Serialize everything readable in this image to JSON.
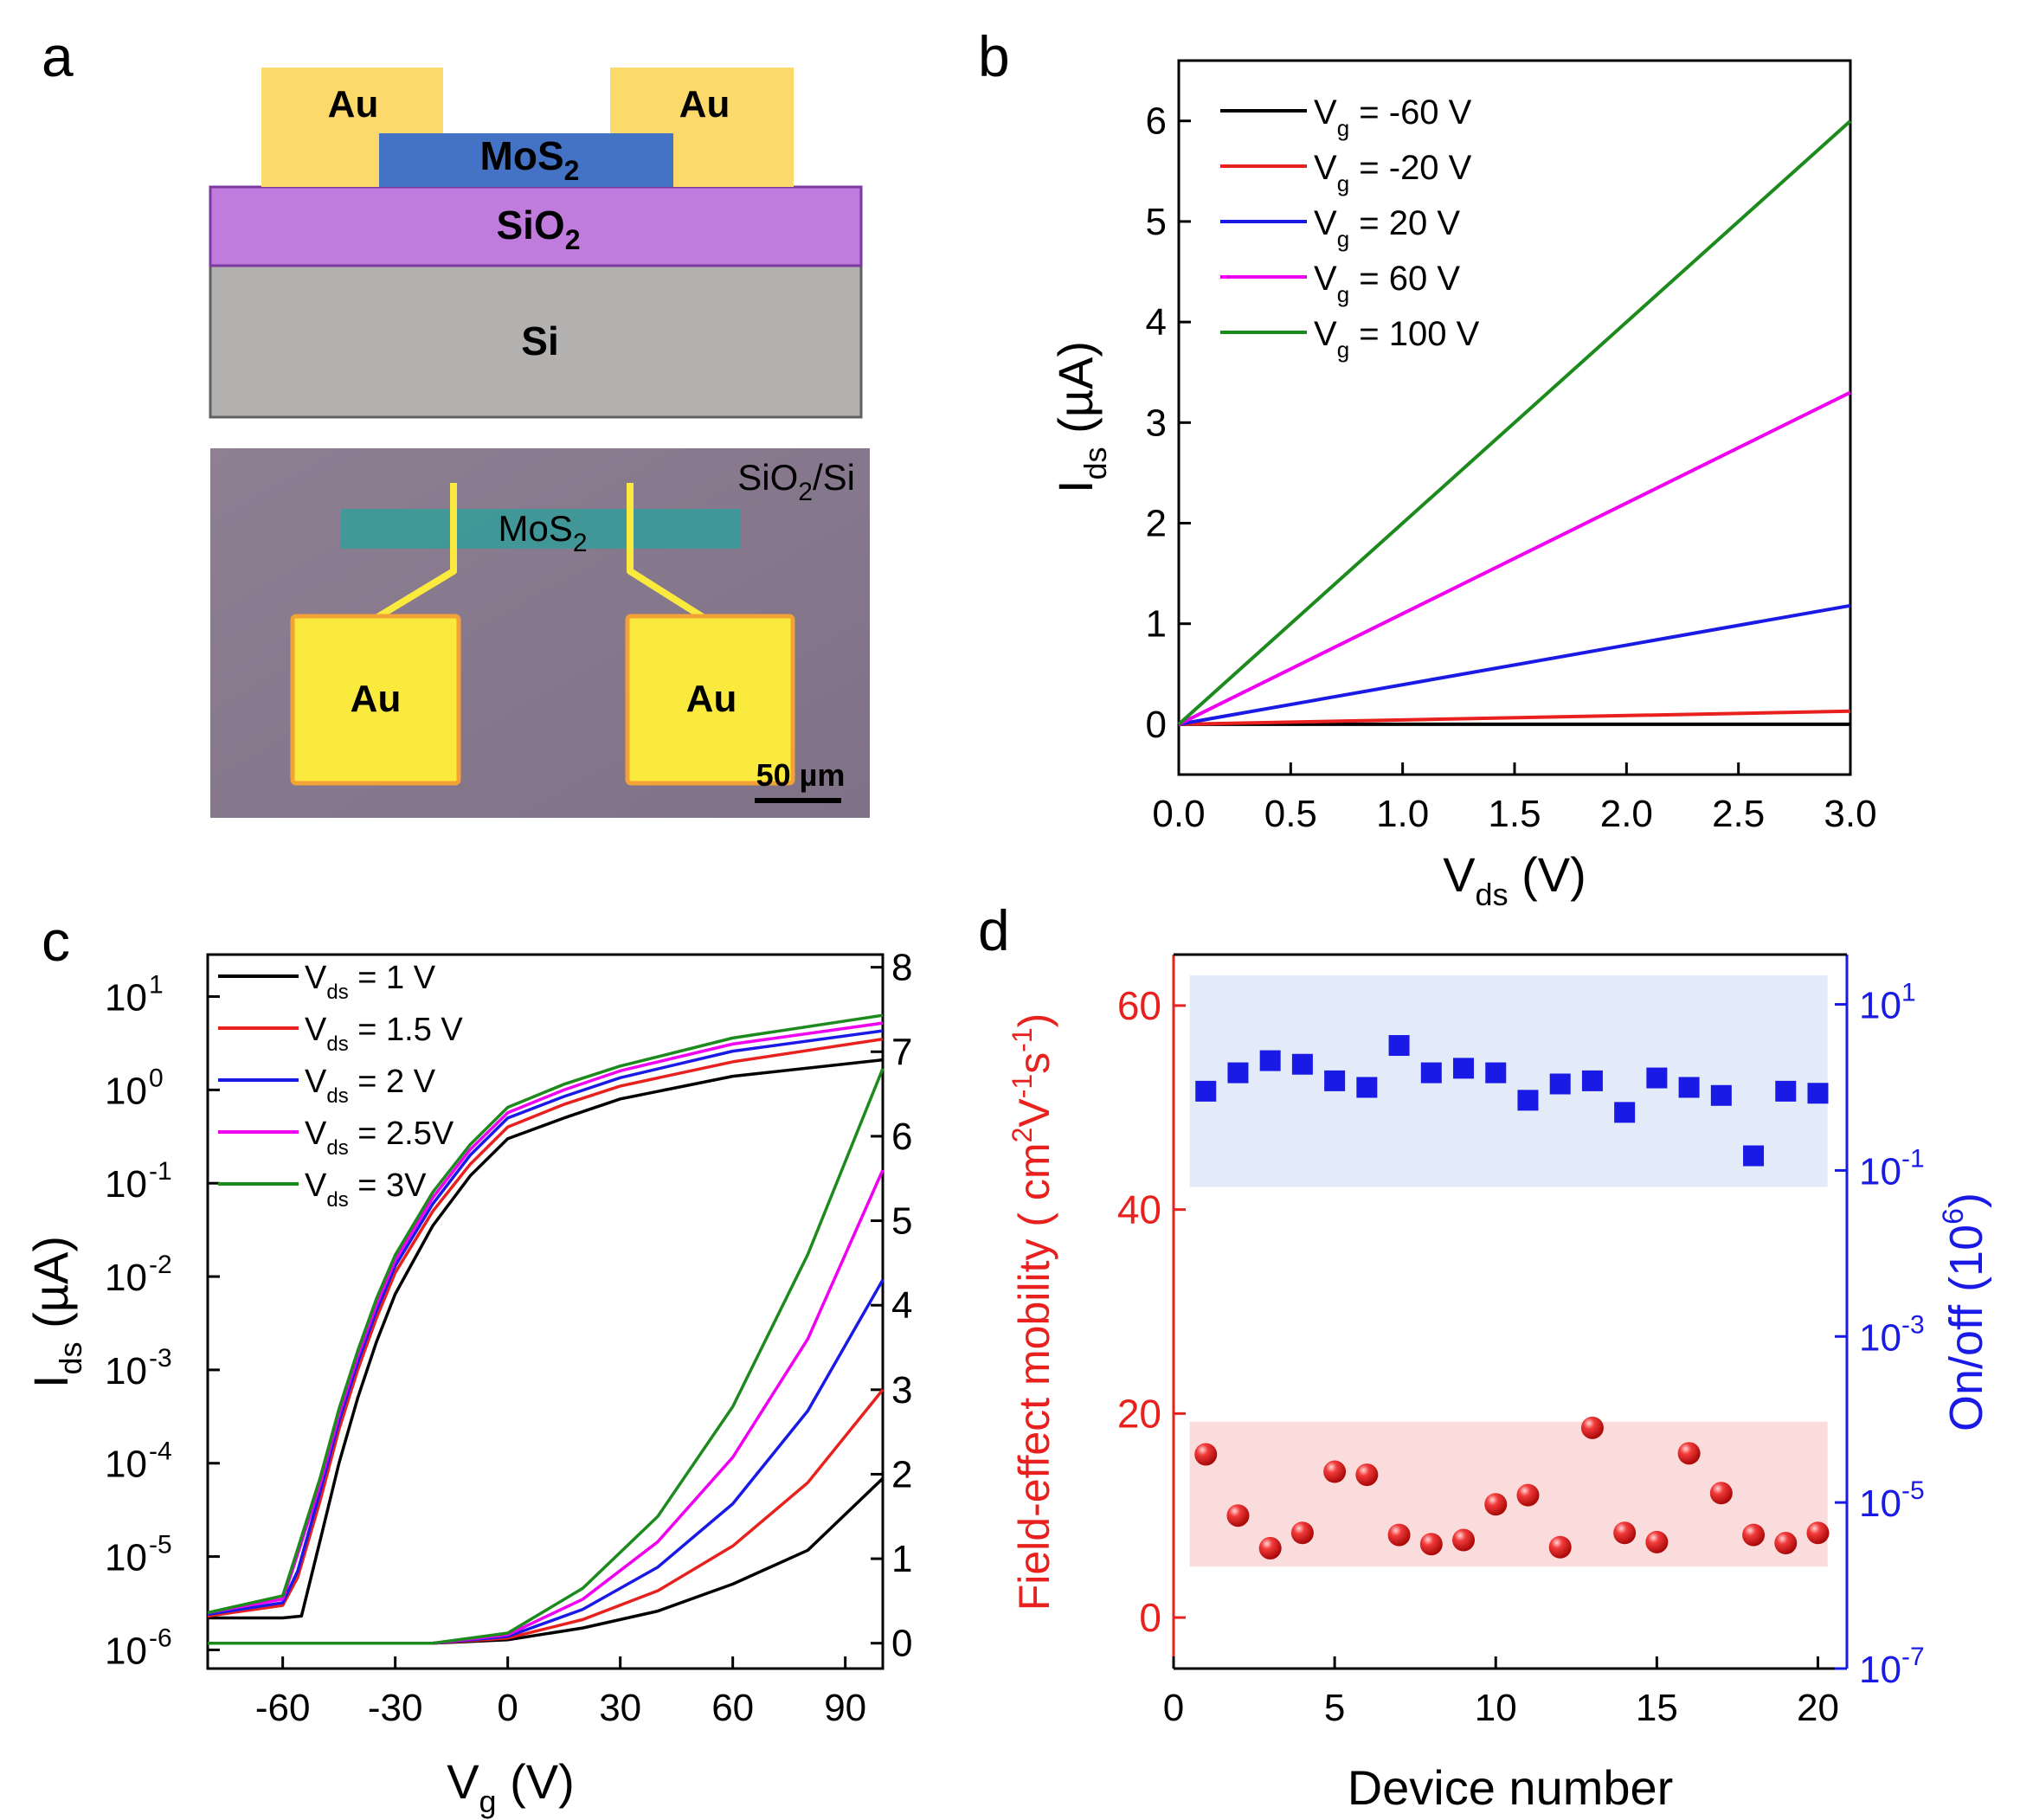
{
  "panels": {
    "a": {
      "label": "a",
      "schematic": {
        "layers": {
          "au": "Au",
          "mos2": "MoS",
          "mos2_sub": "2",
          "sio2": "SiO",
          "sio2_sub": "2",
          "si": "Si"
        }
      },
      "micrograph": {
        "substrate": "SiO",
        "substrate_sub": "2",
        "substrate_suffix": "/Si",
        "flake": "MoS",
        "flake_sub": "2",
        "pad": "Au",
        "scalebar": "50 µm"
      },
      "colors": {
        "au": "#fcd96b",
        "mos2": "#4472c4",
        "sio2": "#bf7cdc",
        "si": "#b3b0b0",
        "micro_bg": "#8b7c8f",
        "micro_flake": "#3a9a98",
        "micro_pad": "#fbea3e"
      }
    },
    "b": {
      "label": "b"
    },
    "c": {
      "label": "c"
    },
    "d": {
      "label": "d"
    }
  },
  "chart_data": [
    {
      "panel": "b",
      "type": "line",
      "xlabel": "V",
      "xlabel_sub": "ds",
      "xlabel_unit": " (V)",
      "ylabel": "I",
      "ylabel_sub": "ds",
      "ylabel_unit": " (µA)",
      "xlim": [
        0,
        3.0
      ],
      "ylim": [
        -0.5,
        6.6
      ],
      "xticks": [
        "0.0",
        "0.5",
        "1.0",
        "1.5",
        "2.0",
        "2.5",
        "3.0"
      ],
      "yticks": [
        "0",
        "1",
        "2",
        "3",
        "4",
        "5",
        "6"
      ],
      "legend": "top-left",
      "series": [
        {
          "prefix": "V",
          "sub": "g",
          "rest": " = -60 V",
          "color": "#000000",
          "x": [
            0,
            3.0
          ],
          "y": [
            0,
            0.0
          ]
        },
        {
          "prefix": "V",
          "sub": "g",
          "rest": " = -20 V",
          "color": "#e8211e",
          "x": [
            0,
            3.0
          ],
          "y": [
            0,
            0.13
          ]
        },
        {
          "prefix": "V",
          "sub": "g",
          "rest": " = 20 V",
          "color": "#1a1ae6",
          "x": [
            0,
            3.0
          ],
          "y": [
            0,
            1.18
          ]
        },
        {
          "prefix": "V",
          "sub": "g",
          "rest": " = 60 V",
          "color": "#f000f0",
          "x": [
            0,
            3.0
          ],
          "y": [
            0,
            3.3
          ]
        },
        {
          "prefix": "V",
          "sub": "g",
          "rest": " = 100 V",
          "color": "#1d8a1d",
          "x": [
            0,
            3.0
          ],
          "y": [
            0,
            6.0
          ]
        }
      ]
    },
    {
      "panel": "c",
      "type": "line",
      "xlabel": "V",
      "xlabel_sub": "g",
      "xlabel_unit": " (V)",
      "ylabel": "I",
      "ylabel_sub": "ds",
      "ylabel_unit": " (µA)",
      "xlim": [
        -80,
        100
      ],
      "xticks": [
        -60,
        -30,
        0,
        30,
        60,
        90
      ],
      "left_axis": {
        "scale": "log",
        "exp_range": [
          -6.2,
          1.45
        ],
        "tick_exponents": [
          -6,
          -5,
          -4,
          -3,
          -2,
          -1,
          0,
          1
        ],
        "tick_base": "10"
      },
      "right_axis": {
        "scale": "linear",
        "ylim": [
          -0.3,
          8.15
        ],
        "ticks": [
          0,
          1,
          2,
          3,
          4,
          5,
          6,
          7,
          8
        ]
      },
      "legend": "top-left",
      "series": [
        {
          "prefix": "V",
          "sub": "ds",
          "rest": " = 1 V",
          "color": "#000000",
          "log_x": [
            -80,
            -60,
            -55,
            -50,
            -45,
            -40,
            -35,
            -30,
            -20,
            -10,
            0,
            15,
            30,
            60,
            100
          ],
          "log_y": [
            2.2e-06,
            2.2e-06,
            2.3e-06,
            1.5e-05,
            0.0001,
            0.0005,
            0.002,
            0.0065,
            0.035,
            0.12,
            0.3,
            0.5,
            0.8,
            1.4,
            2.1
          ],
          "lin_x": [
            -80,
            -20,
            0,
            20,
            40,
            60,
            80,
            100
          ],
          "lin_y": [
            0,
            0,
            0.04,
            0.18,
            0.38,
            0.7,
            1.1,
            1.95
          ]
        },
        {
          "prefix": "V",
          "sub": "ds",
          "rest": " = 1.5 V",
          "color": "#e8211e",
          "log_x": [
            -80,
            -60,
            -56,
            -50,
            -45,
            -40,
            -35,
            -30,
            -20,
            -10,
            0,
            15,
            30,
            60,
            100
          ],
          "log_y": [
            2.3e-06,
            3e-06,
            6e-06,
            4e-05,
            0.00023,
            0.001,
            0.0036,
            0.011,
            0.05,
            0.16,
            0.4,
            0.7,
            1.1,
            2.0,
            3.5
          ],
          "lin_x": [
            -80,
            -20,
            0,
            20,
            40,
            60,
            80,
            100
          ],
          "lin_y": [
            0,
            0,
            0.06,
            0.28,
            0.62,
            1.15,
            1.9,
            3.0
          ]
        },
        {
          "prefix": "V",
          "sub": "ds",
          "rest": " = 2 V",
          "color": "#1a1ae6",
          "log_x": [
            -80,
            -60,
            -56,
            -50,
            -45,
            -40,
            -35,
            -30,
            -20,
            -10,
            0,
            15,
            30,
            60,
            100
          ],
          "log_y": [
            2.4e-06,
            3.2e-06,
            7e-06,
            5e-05,
            0.00028,
            0.0012,
            0.0043,
            0.013,
            0.06,
            0.2,
            0.5,
            0.85,
            1.35,
            2.6,
            4.3
          ],
          "lin_x": [
            -80,
            -20,
            0,
            20,
            40,
            60,
            80,
            100
          ],
          "lin_y": [
            0,
            0,
            0.08,
            0.4,
            0.9,
            1.65,
            2.75,
            4.3
          ]
        },
        {
          "prefix": "V",
          "sub": "ds",
          "rest": " = 2.5V",
          "color": "#f000f0",
          "log_x": [
            -80,
            -60,
            -57,
            -50,
            -45,
            -40,
            -35,
            -30,
            -20,
            -10,
            0,
            15,
            30,
            60,
            100
          ],
          "log_y": [
            2.5e-06,
            3.5e-06,
            8e-06,
            6e-05,
            0.00033,
            0.0014,
            0.005,
            0.015,
            0.07,
            0.23,
            0.57,
            1.0,
            1.6,
            3.1,
            5.2
          ],
          "lin_x": [
            -80,
            -20,
            0,
            20,
            40,
            60,
            80,
            100
          ],
          "lin_y": [
            0,
            0,
            0.1,
            0.52,
            1.2,
            2.2,
            3.6,
            5.6
          ]
        },
        {
          "prefix": "V",
          "sub": "ds",
          "rest": " = 3V",
          "color": "#1d8a1d",
          "log_x": [
            -80,
            -60,
            -57,
            -50,
            -45,
            -40,
            -35,
            -30,
            -20,
            -10,
            0,
            15,
            30,
            60,
            100
          ],
          "log_y": [
            2.5e-06,
            3.8e-06,
            9e-06,
            7e-05,
            0.00038,
            0.0016,
            0.0058,
            0.017,
            0.08,
            0.26,
            0.65,
            1.15,
            1.8,
            3.6,
            6.3
          ],
          "lin_x": [
            -80,
            -20,
            0,
            20,
            40,
            60,
            80,
            100
          ],
          "lin_y": [
            0,
            0,
            0.12,
            0.65,
            1.5,
            2.8,
            4.6,
            6.8
          ]
        }
      ]
    },
    {
      "panel": "d",
      "type": "scatter",
      "xlabel": "Device number",
      "xlim": [
        0,
        20.9
      ],
      "xticks": [
        0,
        5,
        10,
        15,
        20
      ],
      "left_axis": {
        "label_main": "Field-effect mobility ( cm",
        "label_exp1": "2",
        "label_mid1": "V",
        "label_exp2": "-1",
        "label_mid2": "s",
        "label_exp3": "-1",
        "label_end": ")",
        "ylim": [
          -5,
          65
        ],
        "ticks": [
          0,
          20,
          40,
          60
        ],
        "color": "#e8211e"
      },
      "right_axis": {
        "label_main": "On/off (10",
        "label_exp": "6",
        "label_end": ")",
        "scale": "log",
        "exp_range": [
          -7,
          1.6
        ],
        "tick_exponents": [
          -7,
          -5,
          -3,
          -1,
          1
        ],
        "tick_base": "10",
        "color": "#1a1ae6"
      },
      "bands": {
        "mobility": [
          5,
          19.2
        ],
        "onoff_exp": [
          -1.2,
          1.35
        ]
      },
      "series": [
        {
          "name": "Field-effect mobility",
          "axis": "left",
          "marker": "sphere",
          "color": "#e8211e",
          "x": [
            1,
            2,
            3,
            4,
            5,
            6,
            7,
            8,
            9,
            10,
            11,
            12,
            13,
            14,
            15,
            16,
            17,
            18,
            19,
            20
          ],
          "y": [
            16.0,
            10.0,
            6.8,
            8.3,
            14.3,
            14.0,
            8.1,
            7.2,
            7.6,
            11.1,
            12.0,
            6.9,
            18.6,
            8.3,
            7.4,
            16.1,
            12.2,
            8.1,
            7.3,
            8.3
          ]
        },
        {
          "name": "On/off",
          "axis": "right",
          "marker": "square",
          "color": "#1a1ae6",
          "x": [
            1,
            2,
            3,
            4,
            5,
            6,
            7,
            8,
            9,
            10,
            11,
            12,
            13,
            14,
            15,
            16,
            17,
            18,
            19,
            20
          ],
          "y": [
            0.9,
            1.5,
            2.1,
            1.9,
            1.2,
            1.0,
            3.2,
            1.5,
            1.7,
            1.5,
            0.7,
            1.1,
            1.2,
            0.5,
            1.3,
            1.0,
            0.8,
            0.15,
            0.9,
            0.85
          ]
        }
      ]
    }
  ]
}
